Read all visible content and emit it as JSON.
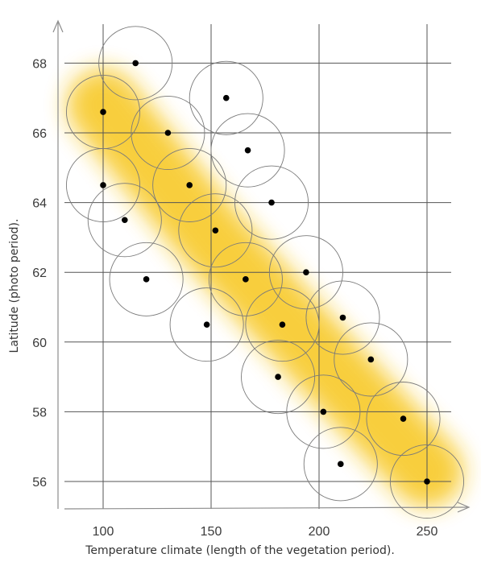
{
  "chart_data": {
    "type": "scatter",
    "title": "",
    "xlabel": "Temperature climate (length of the vegetation period).",
    "ylabel": "Latitude (photo period).",
    "xlim": [
      100,
      250
    ],
    "ylim": [
      56,
      68
    ],
    "x_ticks": [
      "100",
      "150",
      "200",
      "250"
    ],
    "y_ticks": [
      "56",
      "58",
      "60",
      "62",
      "64",
      "66",
      "68"
    ],
    "grid": true,
    "circle_radius_x_units": 17,
    "band": {
      "description_color": "#f7c61a",
      "path": [
        [
          100,
          66.8
        ],
        [
          150,
          63.0
        ],
        [
          200,
          59.6
        ],
        [
          250,
          56.3
        ]
      ]
    },
    "points": [
      {
        "x": 115,
        "y": 68.0
      },
      {
        "x": 100,
        "y": 66.6
      },
      {
        "x": 157,
        "y": 67.0
      },
      {
        "x": 130,
        "y": 66.0
      },
      {
        "x": 167,
        "y": 65.5
      },
      {
        "x": 100,
        "y": 64.5
      },
      {
        "x": 140,
        "y": 64.5
      },
      {
        "x": 178,
        "y": 64.0
      },
      {
        "x": 110,
        "y": 63.5
      },
      {
        "x": 152,
        "y": 63.2
      },
      {
        "x": 194,
        "y": 62.0
      },
      {
        "x": 120,
        "y": 61.8
      },
      {
        "x": 166,
        "y": 61.8
      },
      {
        "x": 211,
        "y": 60.7
      },
      {
        "x": 148,
        "y": 60.5
      },
      {
        "x": 183,
        "y": 60.5
      },
      {
        "x": 224,
        "y": 59.5
      },
      {
        "x": 181,
        "y": 59.0
      },
      {
        "x": 202,
        "y": 58.0
      },
      {
        "x": 239,
        "y": 57.8
      },
      {
        "x": 210,
        "y": 56.5
      },
      {
        "x": 250,
        "y": 56.0
      }
    ],
    "colors": {
      "point": "#000000",
      "circle": "#7a7a7a",
      "grid": "#555555",
      "axis": "#8c8c8c",
      "band": "#f7c61a"
    }
  }
}
